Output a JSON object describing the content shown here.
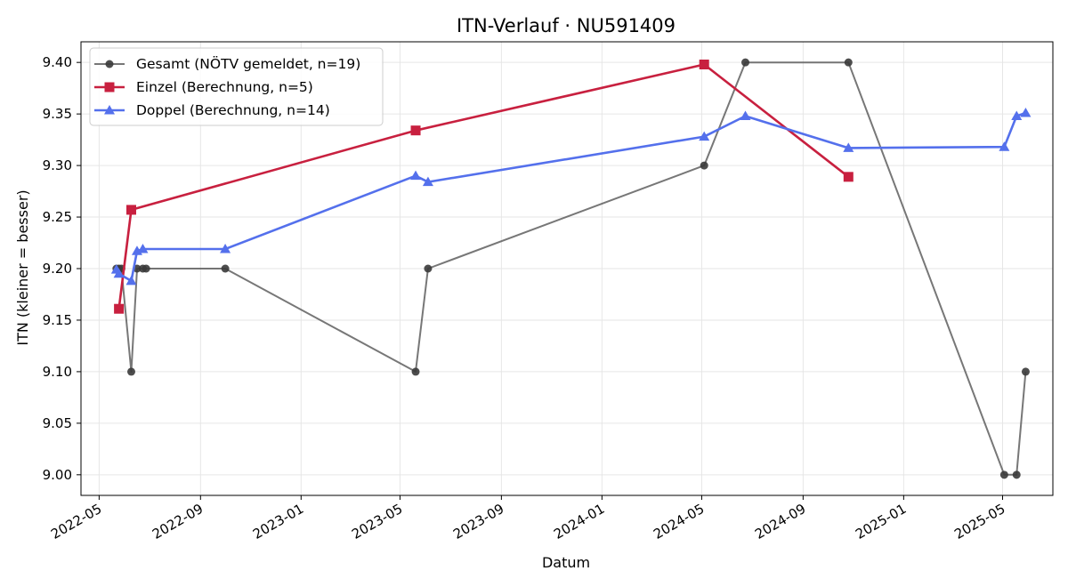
{
  "chart_data": {
    "type": "line",
    "title": "ITN-Verlauf · NU591409",
    "xlabel": "Datum",
    "ylabel": "ITN  (kleiner = besser)",
    "x_ticks": [
      "2022-05",
      "2022-09",
      "2023-01",
      "2023-05",
      "2023-09",
      "2024-01",
      "2024-05",
      "2024-09",
      "2025-01",
      "2025-05"
    ],
    "y_ticks": [
      "9.00",
      "9.05",
      "9.10",
      "9.15",
      "9.20",
      "9.25",
      "9.30",
      "9.35",
      "9.40"
    ],
    "ylim": [
      8.98,
      9.42
    ],
    "xlim": [
      "2022-04-09",
      "2025-07-01"
    ],
    "grid": true,
    "legend_position": "top-left",
    "series": [
      {
        "name": "Gesamt (NÖTV gemeldet, n=19)",
        "color": "#555555",
        "marker": "circle",
        "points": [
          {
            "x": "2022-05-22",
            "y": 9.2
          },
          {
            "x": "2022-05-25",
            "y": 9.2
          },
          {
            "x": "2022-05-28",
            "y": 9.2
          },
          {
            "x": "2022-06-09",
            "y": 9.1
          },
          {
            "x": "2022-06-16",
            "y": 9.2
          },
          {
            "x": "2022-06-23",
            "y": 9.2
          },
          {
            "x": "2022-06-27",
            "y": 9.2
          },
          {
            "x": "2022-10-01",
            "y": 9.2
          },
          {
            "x": "2023-05-20",
            "y": 9.1
          },
          {
            "x": "2023-06-04",
            "y": 9.2
          },
          {
            "x": "2024-05-04",
            "y": 9.3
          },
          {
            "x": "2024-06-23",
            "y": 9.4
          },
          {
            "x": "2024-10-26",
            "y": 9.4
          },
          {
            "x": "2025-05-03",
            "y": 9.0
          },
          {
            "x": "2025-05-18",
            "y": 9.0
          },
          {
            "x": "2025-05-29",
            "y": 9.1
          }
        ]
      },
      {
        "name": "Einzel (Berechnung, n=5)",
        "color": "#c8203f",
        "marker": "square",
        "points": [
          {
            "x": "2022-05-25",
            "y": 9.161
          },
          {
            "x": "2022-06-09",
            "y": 9.257
          },
          {
            "x": "2023-05-20",
            "y": 9.334
          },
          {
            "x": "2024-05-04",
            "y": 9.398
          },
          {
            "x": "2024-10-26",
            "y": 9.289
          }
        ]
      },
      {
        "name": "Doppel (Berechnung, n=14)",
        "color": "#5470ec",
        "marker": "triangle",
        "points": [
          {
            "x": "2022-05-22",
            "y": 9.199
          },
          {
            "x": "2022-05-25",
            "y": 9.195
          },
          {
            "x": "2022-06-09",
            "y": 9.188
          },
          {
            "x": "2022-06-16",
            "y": 9.217
          },
          {
            "x": "2022-06-23",
            "y": 9.219
          },
          {
            "x": "2022-10-01",
            "y": 9.219
          },
          {
            "x": "2023-05-20",
            "y": 9.29
          },
          {
            "x": "2023-06-04",
            "y": 9.284
          },
          {
            "x": "2024-05-04",
            "y": 9.328
          },
          {
            "x": "2024-06-23",
            "y": 9.348
          },
          {
            "x": "2024-10-26",
            "y": 9.317
          },
          {
            "x": "2025-05-03",
            "y": 9.318
          },
          {
            "x": "2025-05-18",
            "y": 9.348
          },
          {
            "x": "2025-05-29",
            "y": 9.351
          }
        ]
      }
    ]
  }
}
